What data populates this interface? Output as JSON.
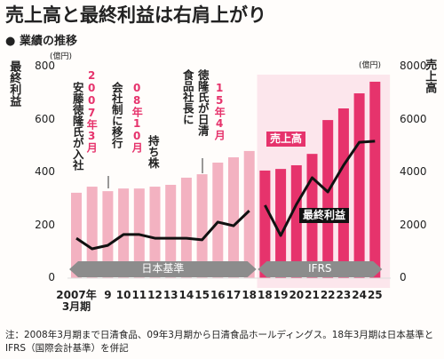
{
  "title": "売上高と最終利益は右肩上がり",
  "subtitle": "業績の推移",
  "note": "注：2008年3月期まで日清食品、09年3月期から日清食品ホールディングス。18年3月期は日本基準とIFRS（国際会計基準）を併記",
  "chart_data": {
    "type": "bar_line",
    "y_label": "最終利益",
    "y_unit": "(億円)",
    "y2_label": "売上高",
    "y2_unit": "(億円)",
    "categories": [
      "2007年\n3月期",
      null,
      "9",
      "10",
      "11",
      "12",
      "13",
      "14",
      "15",
      "16",
      "17",
      "18",
      "18",
      "19",
      "20",
      "21",
      "22",
      "23",
      "24",
      "25"
    ],
    "ylim": [
      0,
      800
    ],
    "yticks": [
      0,
      200,
      400,
      600,
      800
    ],
    "y2lim": [
      0,
      8000
    ],
    "y2ticks": [
      0,
      2000,
      4000,
      6000,
      8000
    ],
    "series": [
      {
        "kind": "bar",
        "axis": "y2",
        "color": "#f3b2c1",
        "values": [
          3230,
          3460,
          3290,
          3390,
          3390,
          3460,
          3530,
          3800,
          3930,
          4370,
          4570,
          4810,
          null,
          null,
          null,
          null,
          null,
          null,
          null,
          null
        ]
      },
      {
        "name": "売上高",
        "kind": "bar",
        "axis": "y2",
        "color": "#e6336c",
        "values": [
          null,
          null,
          null,
          null,
          null,
          null,
          null,
          null,
          null,
          null,
          null,
          null,
          4070,
          4130,
          4270,
          4700,
          5980,
          6420,
          6990,
          7430
        ]
      },
      {
        "kind": "line",
        "axis": "y",
        "color": "#111111",
        "values": [
          151,
          111,
          124,
          165,
          165,
          151,
          151,
          151,
          145,
          212,
          198,
          255,
          null,
          null,
          null,
          null,
          null,
          null,
          null,
          null
        ]
      },
      {
        "name": "最終利益",
        "kind": "line",
        "axis": "y",
        "color": "#111111",
        "values": [
          null,
          null,
          null,
          null,
          null,
          null,
          null,
          null,
          null,
          null,
          null,
          null,
          276,
          161,
          279,
          380,
          326,
          427,
          514,
          518
        ]
      }
    ],
    "standards": [
      "日本基準",
      "IFRS"
    ],
    "annotations": [
      {
        "date": "2007年3月",
        "text": [
          "安藤徳隆氏が入社"
        ]
      },
      {
        "date": "08年10月",
        "text": [
          "持ち株",
          "会社制に移行"
        ]
      },
      {
        "date": "15年4月",
        "text": [
          "徳隆氏が日清",
          "食品社長に"
        ]
      }
    ]
  }
}
